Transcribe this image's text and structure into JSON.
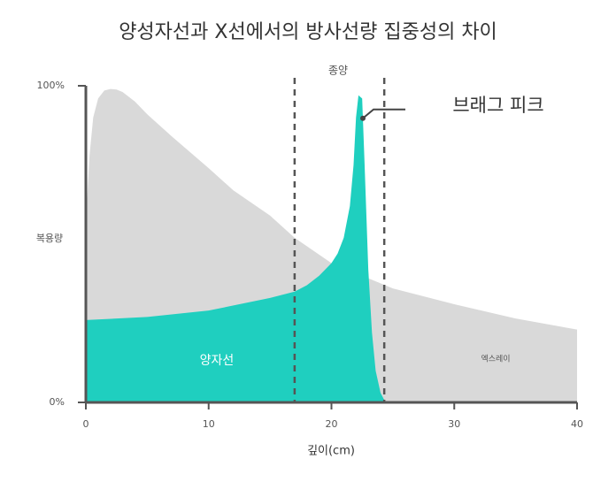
{
  "chart_data": {
    "type": "area",
    "title": "양성자선과 X선에서의 방사선량 집중성의 차이",
    "xlabel": "깊이(cm)",
    "ylabel": "복용량",
    "xlim": [
      0,
      40
    ],
    "xticks": [
      0,
      10,
      20,
      30,
      40
    ],
    "ylim": [
      0,
      100
    ],
    "yticks": [
      {
        "value": 0,
        "label": "0%"
      },
      {
        "value": 100,
        "label": "100%"
      }
    ],
    "series": [
      {
        "name": "엑스레이",
        "color": "#d9d9d9",
        "x": [
          0,
          0.3,
          0.6,
          1,
          1.5,
          2,
          2.5,
          3,
          4,
          5,
          7,
          10,
          12,
          15,
          17,
          20,
          25,
          30,
          35,
          40
        ],
        "values": [
          57,
          78,
          90,
          96,
          98.5,
          99,
          98.8,
          98,
          95,
          91,
          84,
          74,
          67,
          59,
          52,
          44,
          36,
          31,
          26.5,
          23
        ]
      },
      {
        "name": "양자선",
        "color": "#1fcfbf",
        "x": [
          0,
          5,
          10,
          15,
          17,
          18,
          19,
          20,
          20.5,
          21,
          21.5,
          21.8,
          22,
          22.2,
          22.5,
          22.7,
          23,
          23.3,
          23.6,
          24,
          24.4
        ],
        "values": [
          26,
          27,
          29,
          33,
          35,
          37,
          40,
          44,
          47,
          52,
          62,
          75,
          90,
          97,
          96,
          75,
          42,
          22,
          10,
          3,
          0
        ]
      }
    ],
    "tumor_label": "종양",
    "tumor_range": [
      17,
      24.3
    ],
    "peak_label": "브래그 피크"
  }
}
